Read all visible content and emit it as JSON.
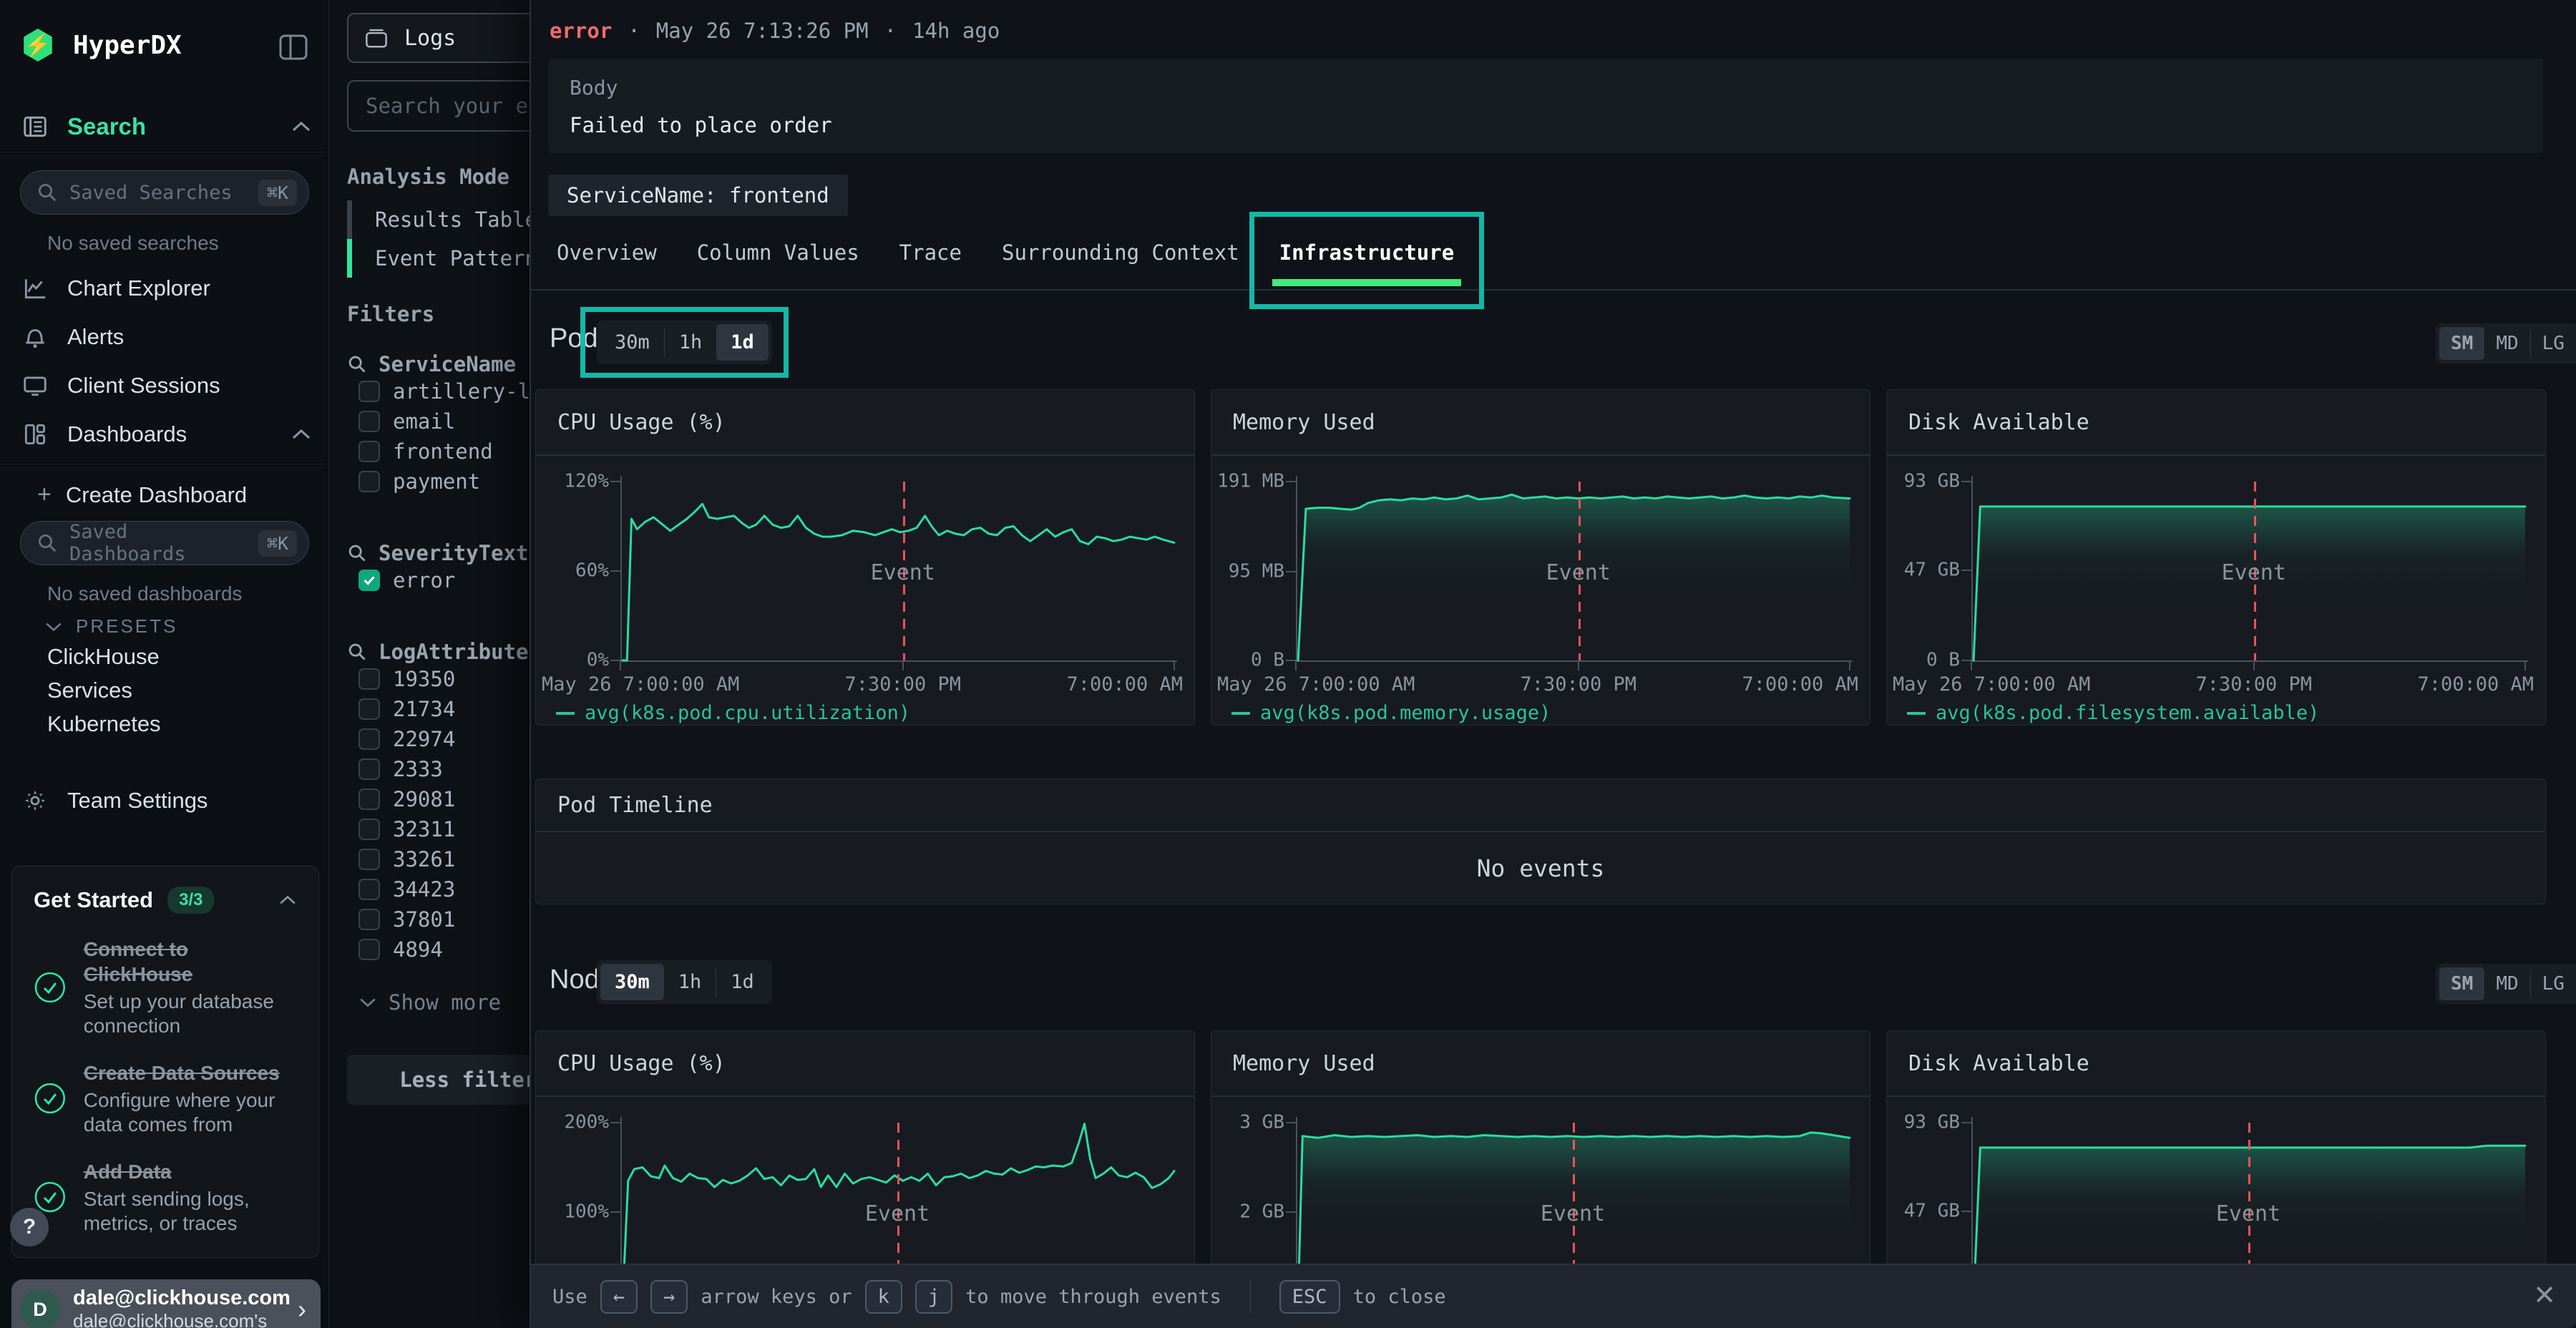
{
  "sidebar": {
    "brand": "HyperDX",
    "search_section": "Search",
    "saved_searches_placeholder": "Saved Searches",
    "shortcut": "⌘K",
    "no_saved_searches": "No saved searches",
    "nav": [
      {
        "label": "Chart Explorer"
      },
      {
        "label": "Alerts"
      },
      {
        "label": "Client Sessions"
      },
      {
        "label": "Dashboards"
      }
    ],
    "plus": "+",
    "create_dashboard": "Create Dashboard",
    "saved_dashboards_placeholder": "Saved Dashboards",
    "no_saved_dashboards": "No saved dashboards",
    "presets_label": "PRESETS",
    "preset_items": [
      "ClickHouse",
      "Services",
      "Kubernetes"
    ],
    "team_settings": "Team Settings",
    "get_started": {
      "title": "Get Started",
      "badge": "3/3",
      "items": [
        {
          "title": "Connect to ClickHouse",
          "desc": "Set up your database connection"
        },
        {
          "title": "Create Data Sources",
          "desc": "Configure where your data comes from"
        },
        {
          "title": "Add Data",
          "desc": "Start sending logs, metrics, or traces"
        }
      ]
    },
    "help": "?",
    "user": {
      "initial": "D",
      "name": "dale@clickhouse.com",
      "subtitle": "dale@clickhouse.com's"
    }
  },
  "source_panel": {
    "source_label": "Logs",
    "search_placeholder": "Search your events",
    "analysis_mode_label": "Analysis Mode",
    "modes": [
      {
        "label": "Results Table",
        "active": false
      },
      {
        "label": "Event Patterns",
        "active": true
      }
    ],
    "filters_label": "Filters",
    "groups": [
      {
        "name": "ServiceName",
        "options": [
          {
            "label": "artillery-loa",
            "checked": false
          },
          {
            "label": "email",
            "checked": false
          },
          {
            "label": "frontend",
            "checked": false
          },
          {
            "label": "payment",
            "checked": false
          }
        ]
      },
      {
        "name": "SeverityText",
        "options": [
          {
            "label": "error",
            "checked": true
          }
        ]
      },
      {
        "name": "LogAttributes",
        "options": [
          {
            "label": "19350",
            "checked": false
          },
          {
            "label": "21734",
            "checked": false
          },
          {
            "label": "22974",
            "checked": false
          },
          {
            "label": "2333",
            "checked": false
          },
          {
            "label": "29081",
            "checked": false
          },
          {
            "label": "32311",
            "checked": false
          },
          {
            "label": "33261",
            "checked": false
          },
          {
            "label": "34423",
            "checked": false
          },
          {
            "label": "37801",
            "checked": false
          },
          {
            "label": "4894",
            "checked": false
          }
        ]
      }
    ],
    "show_more": "Show more",
    "less_filters": "Less filters"
  },
  "detail": {
    "severity": "error",
    "separator": "·",
    "timestamp": "May 26 7:13:26 PM",
    "age": "14h ago",
    "body_label": "Body",
    "body_value": "Failed to place order",
    "service_chip": "ServiceName: frontend",
    "tabs": [
      "Overview",
      "Column Values",
      "Trace",
      "Surrounding Context",
      "Infrastructure"
    ],
    "active_tab": "Infrastructure",
    "pod": {
      "title": "Pod",
      "ranges": [
        "30m",
        "1h",
        "1d"
      ],
      "active_range": "1d",
      "sizes": [
        "SM",
        "MD",
        "LG"
      ],
      "active_size": "SM"
    },
    "timeline": {
      "title": "Pod Timeline",
      "empty": "No events"
    },
    "node": {
      "title": "Node",
      "ranges": [
        "30m",
        "1h",
        "1d"
      ],
      "active_range": "30m",
      "sizes": [
        "SM",
        "MD",
        "LG"
      ],
      "active_size": "SM"
    },
    "footer": {
      "use": "Use",
      "arrow_left": "←",
      "arrow_right": "→",
      "t1": "arrow keys or",
      "k": "k",
      "j": "j",
      "t2": "to move through events",
      "esc": "ESC",
      "t3": "to close",
      "close": "✕"
    }
  },
  "chart_data": [
    {
      "id": "pod-cpu",
      "type": "line",
      "title": "CPU Usage (%)",
      "ylim": [
        0,
        120
      ],
      "yticks": [
        {
          "v": 120,
          "label": "120%"
        },
        {
          "v": 60,
          "label": "60%"
        },
        {
          "v": 0,
          "label": "0%"
        }
      ],
      "xticks": [
        "May 26 7:00:00 AM",
        "7:30:00 PM",
        "7:00:00 AM"
      ],
      "event_x": 0.51,
      "event_label": "Event",
      "area": false,
      "legend": "avg(k8s.pod.cpu.utilization)",
      "color": "#2bdca0",
      "points": [
        [
          0.004,
          0
        ],
        [
          0.012,
          0
        ],
        [
          0.02,
          95
        ],
        [
          0.03,
          88
        ],
        [
          0.045,
          93
        ],
        [
          0.06,
          96
        ],
        [
          0.07,
          93
        ],
        [
          0.08,
          90
        ],
        [
          0.09,
          87
        ],
        [
          0.105,
          91
        ],
        [
          0.12,
          95
        ],
        [
          0.135,
          100
        ],
        [
          0.148,
          105
        ],
        [
          0.16,
          96
        ],
        [
          0.175,
          95
        ],
        [
          0.19,
          96
        ],
        [
          0.205,
          97
        ],
        [
          0.22,
          92
        ],
        [
          0.232,
          89
        ],
        [
          0.245,
          91
        ],
        [
          0.26,
          97
        ],
        [
          0.275,
          91
        ],
        [
          0.29,
          89
        ],
        [
          0.305,
          90
        ],
        [
          0.32,
          97
        ],
        [
          0.335,
          89
        ],
        [
          0.35,
          85
        ],
        [
          0.365,
          83
        ],
        [
          0.38,
          83
        ],
        [
          0.4,
          84
        ],
        [
          0.42,
          87
        ],
        [
          0.44,
          86
        ],
        [
          0.46,
          84
        ],
        [
          0.475,
          86
        ],
        [
          0.49,
          88
        ],
        [
          0.505,
          86
        ],
        [
          0.52,
          87
        ],
        [
          0.535,
          89
        ],
        [
          0.55,
          97
        ],
        [
          0.562,
          90
        ],
        [
          0.575,
          84
        ],
        [
          0.59,
          87
        ],
        [
          0.605,
          85
        ],
        [
          0.62,
          84
        ],
        [
          0.635,
          88
        ],
        [
          0.65,
          89
        ],
        [
          0.665,
          85
        ],
        [
          0.68,
          84
        ],
        [
          0.695,
          89
        ],
        [
          0.71,
          90
        ],
        [
          0.725,
          84
        ],
        [
          0.74,
          80
        ],
        [
          0.755,
          84
        ],
        [
          0.77,
          88
        ],
        [
          0.785,
          83
        ],
        [
          0.8,
          86
        ],
        [
          0.815,
          88
        ],
        [
          0.83,
          80
        ],
        [
          0.845,
          78
        ],
        [
          0.86,
          83
        ],
        [
          0.875,
          82
        ],
        [
          0.89,
          80
        ],
        [
          0.905,
          81
        ],
        [
          0.92,
          83
        ],
        [
          0.935,
          82
        ],
        [
          0.95,
          81
        ],
        [
          0.965,
          83
        ],
        [
          0.98,
          81
        ],
        [
          1,
          79
        ]
      ]
    },
    {
      "id": "pod-mem",
      "type": "area",
      "title": "Memory Used",
      "ylim": [
        0,
        191
      ],
      "yticks": [
        {
          "v": 191,
          "label": "191 MB"
        },
        {
          "v": 95,
          "label": "95 MB"
        },
        {
          "v": 0,
          "label": "0 B"
        }
      ],
      "xticks": [
        "May 26 7:00:00 AM",
        "7:30:00 PM",
        "7:00:00 AM"
      ],
      "event_x": 0.51,
      "event_label": "Event",
      "area": true,
      "legend": "avg(k8s.pod.memory.usage)",
      "color": "#2bdca0",
      "points": [
        [
          0.004,
          0
        ],
        [
          0.018,
          162
        ],
        [
          0.04,
          163
        ],
        [
          0.06,
          163
        ],
        [
          0.08,
          162
        ],
        [
          0.1,
          161
        ],
        [
          0.115,
          163
        ],
        [
          0.13,
          168
        ],
        [
          0.15,
          171
        ],
        [
          0.17,
          172
        ],
        [
          0.19,
          171
        ],
        [
          0.21,
          173
        ],
        [
          0.23,
          172
        ],
        [
          0.25,
          174
        ],
        [
          0.27,
          172
        ],
        [
          0.29,
          173
        ],
        [
          0.31,
          176
        ],
        [
          0.33,
          172
        ],
        [
          0.35,
          173
        ],
        [
          0.37,
          174
        ],
        [
          0.39,
          177
        ],
        [
          0.41,
          173
        ],
        [
          0.43,
          174
        ],
        [
          0.45,
          175
        ],
        [
          0.47,
          173
        ],
        [
          0.49,
          174
        ],
        [
          0.51,
          173
        ],
        [
          0.53,
          174
        ],
        [
          0.55,
          173
        ],
        [
          0.57,
          174
        ],
        [
          0.59,
          175
        ],
        [
          0.61,
          173
        ],
        [
          0.63,
          174
        ],
        [
          0.65,
          173
        ],
        [
          0.67,
          175
        ],
        [
          0.69,
          174
        ],
        [
          0.71,
          173
        ],
        [
          0.73,
          174
        ],
        [
          0.75,
          175
        ],
        [
          0.77,
          173
        ],
        [
          0.79,
          174
        ],
        [
          0.81,
          176
        ],
        [
          0.83,
          174
        ],
        [
          0.85,
          173
        ],
        [
          0.87,
          174
        ],
        [
          0.89,
          173
        ],
        [
          0.91,
          175
        ],
        [
          0.93,
          174
        ],
        [
          0.95,
          176
        ],
        [
          0.97,
          174
        ],
        [
          1,
          173
        ]
      ]
    },
    {
      "id": "pod-disk",
      "type": "area",
      "title": "Disk Available",
      "ylim": [
        0,
        93
      ],
      "yticks": [
        {
          "v": 93,
          "label": "93 GB"
        },
        {
          "v": 47,
          "label": "47 GB"
        },
        {
          "v": 0,
          "label": "0 B"
        }
      ],
      "xticks": [
        "May 26 7:00:00 AM",
        "7:30:00 PM",
        "7:00:00 AM"
      ],
      "event_x": 0.51,
      "event_label": "Event",
      "area": true,
      "legend": "avg(k8s.pod.filesystem.available)",
      "color": "#2bdca0",
      "points": [
        [
          0.004,
          0
        ],
        [
          0.016,
          80
        ],
        [
          0.5,
          80
        ],
        [
          1,
          80
        ]
      ]
    },
    {
      "id": "node-cpu",
      "type": "line",
      "title": "CPU Usage (%)",
      "ylim": [
        0,
        200
      ],
      "yticks": [
        {
          "v": 200,
          "label": "200%"
        },
        {
          "v": 100,
          "label": "100%"
        }
      ],
      "xticks": [],
      "event_x": 0.5,
      "event_label": "Event",
      "area": false,
      "legend": null,
      "color": "#2bdca0",
      "points": [
        [
          0.004,
          0
        ],
        [
          0.014,
          135
        ],
        [
          0.025,
          148
        ],
        [
          0.04,
          150
        ],
        [
          0.055,
          140
        ],
        [
          0.07,
          138
        ],
        [
          0.08,
          152
        ],
        [
          0.095,
          138
        ],
        [
          0.11,
          134
        ],
        [
          0.125,
          143
        ],
        [
          0.14,
          138
        ],
        [
          0.155,
          137
        ],
        [
          0.17,
          128
        ],
        [
          0.185,
          136
        ],
        [
          0.2,
          132
        ],
        [
          0.215,
          135
        ],
        [
          0.23,
          141
        ],
        [
          0.245,
          149
        ],
        [
          0.26,
          137
        ],
        [
          0.275,
          139
        ],
        [
          0.29,
          130
        ],
        [
          0.305,
          141
        ],
        [
          0.32,
          136
        ],
        [
          0.335,
          137
        ],
        [
          0.35,
          148
        ],
        [
          0.362,
          128
        ],
        [
          0.375,
          141
        ],
        [
          0.39,
          128
        ],
        [
          0.405,
          143
        ],
        [
          0.42,
          132
        ],
        [
          0.435,
          137
        ],
        [
          0.45,
          139
        ],
        [
          0.465,
          136
        ],
        [
          0.48,
          133
        ],
        [
          0.495,
          141
        ],
        [
          0.51,
          135
        ],
        [
          0.525,
          139
        ],
        [
          0.54,
          135
        ],
        [
          0.555,
          143
        ],
        [
          0.57,
          130
        ],
        [
          0.585,
          139
        ],
        [
          0.6,
          140
        ],
        [
          0.615,
          143
        ],
        [
          0.63,
          138
        ],
        [
          0.645,
          141
        ],
        [
          0.66,
          146
        ],
        [
          0.675,
          143
        ],
        [
          0.69,
          142
        ],
        [
          0.705,
          149
        ],
        [
          0.72,
          144
        ],
        [
          0.735,
          147
        ],
        [
          0.75,
          151
        ],
        [
          0.765,
          150
        ],
        [
          0.78,
          152
        ],
        [
          0.8,
          151
        ],
        [
          0.815,
          155
        ],
        [
          0.828,
          178
        ],
        [
          0.838,
          201
        ],
        [
          0.848,
          160
        ],
        [
          0.858,
          138
        ],
        [
          0.872,
          143
        ],
        [
          0.886,
          150
        ],
        [
          0.9,
          141
        ],
        [
          0.915,
          139
        ],
        [
          0.93,
          144
        ],
        [
          0.945,
          139
        ],
        [
          0.96,
          127
        ],
        [
          0.975,
          131
        ],
        [
          0.99,
          138
        ],
        [
          1,
          146
        ]
      ]
    },
    {
      "id": "node-mem",
      "type": "area",
      "title": "Memory Used",
      "ylim": [
        1,
        3
      ],
      "yticks": [
        {
          "v": 3,
          "label": "3 GB"
        },
        {
          "v": 2,
          "label": "2 GB"
        }
      ],
      "xticks": [],
      "event_x": 0.5,
      "event_label": "Event",
      "area": true,
      "legend": null,
      "color": "#2bdca0",
      "points": [
        [
          0.004,
          1
        ],
        [
          0.012,
          2.85
        ],
        [
          0.04,
          2.83
        ],
        [
          0.07,
          2.86
        ],
        [
          0.1,
          2.84
        ],
        [
          0.13,
          2.85
        ],
        [
          0.16,
          2.84
        ],
        [
          0.19,
          2.85
        ],
        [
          0.22,
          2.86
        ],
        [
          0.25,
          2.84
        ],
        [
          0.28,
          2.85
        ],
        [
          0.31,
          2.84
        ],
        [
          0.34,
          2.86
        ],
        [
          0.37,
          2.85
        ],
        [
          0.4,
          2.84
        ],
        [
          0.43,
          2.85
        ],
        [
          0.46,
          2.84
        ],
        [
          0.49,
          2.85
        ],
        [
          0.52,
          2.84
        ],
        [
          0.55,
          2.85
        ],
        [
          0.58,
          2.84
        ],
        [
          0.61,
          2.85
        ],
        [
          0.64,
          2.84
        ],
        [
          0.67,
          2.85
        ],
        [
          0.7,
          2.84
        ],
        [
          0.73,
          2.85
        ],
        [
          0.76,
          2.84
        ],
        [
          0.79,
          2.85
        ],
        [
          0.82,
          2.84
        ],
        [
          0.85,
          2.85
        ],
        [
          0.88,
          2.84
        ],
        [
          0.91,
          2.85
        ],
        [
          0.93,
          2.89
        ],
        [
          0.95,
          2.88
        ],
        [
          0.97,
          2.86
        ],
        [
          1,
          2.83
        ]
      ]
    },
    {
      "id": "node-disk",
      "type": "area",
      "title": "Disk Available",
      "ylim": [
        0,
        93
      ],
      "yticks": [
        {
          "v": 93,
          "label": "93 GB"
        },
        {
          "v": 47,
          "label": "47 GB"
        }
      ],
      "xticks": [],
      "event_x": 0.5,
      "event_label": "Event",
      "area": true,
      "legend": null,
      "color": "#2bdca0",
      "points": [
        [
          0.004,
          0
        ],
        [
          0.016,
          80
        ],
        [
          0.9,
          80
        ],
        [
          0.93,
          81
        ],
        [
          1,
          81
        ]
      ]
    }
  ]
}
